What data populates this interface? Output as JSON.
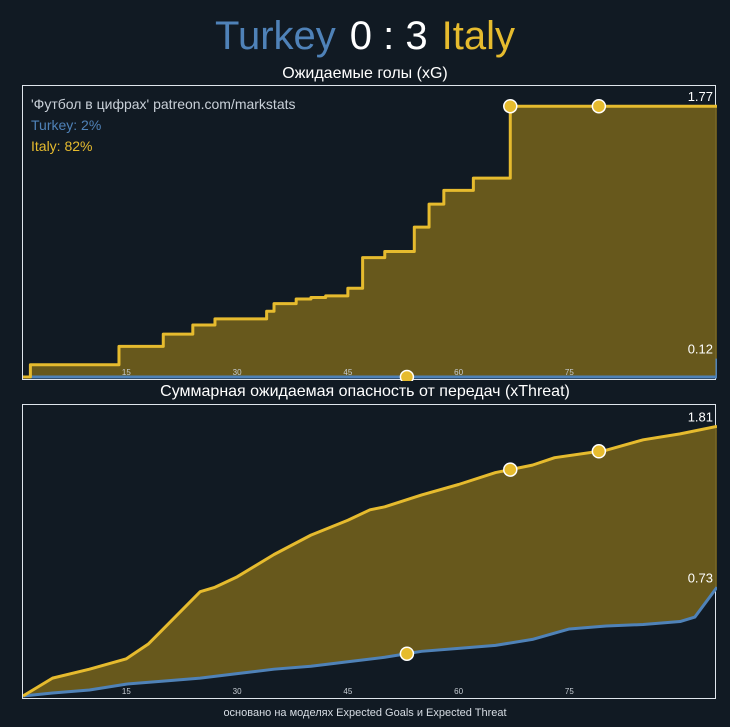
{
  "match": {
    "home_team": "Turkey",
    "away_team": "Italy",
    "score": "0 : 3",
    "home_color": "#4f82b8",
    "away_color": "#e6bb2e"
  },
  "legend": {
    "credit": "'Футбол в цифрах' patreon.com/markstats",
    "home_prob": "Turkey: 2%",
    "away_prob": "Italy: 82%"
  },
  "footer": "основано на моделях Expected Goals и Expected Threat",
  "chart_data": [
    {
      "type": "line",
      "title": "Ожидаемые голы (xG)",
      "xlim": [
        1,
        95
      ],
      "ylim": [
        0,
        1.85
      ],
      "x_ticks": [
        15,
        30,
        45,
        60,
        75
      ],
      "end_labels": {
        "Turkey": "0.12",
        "Italy": "1.77"
      },
      "fill_between": true,
      "step": true,
      "series": [
        {
          "name": "Turkey",
          "color": "#4f82b8",
          "x": [
            1,
            88,
            95
          ],
          "y": [
            0,
            0,
            0.12
          ]
        },
        {
          "name": "Italy",
          "color": "#e6bb2e",
          "x": [
            1,
            2,
            14,
            18,
            20,
            24,
            27,
            31,
            34,
            35,
            38,
            40,
            42,
            45,
            47,
            50,
            54,
            56,
            58,
            62,
            63,
            67,
            80,
            95
          ],
          "y": [
            0,
            0.08,
            0.2,
            0.2,
            0.28,
            0.34,
            0.38,
            0.38,
            0.43,
            0.48,
            0.51,
            0.52,
            0.53,
            0.58,
            0.78,
            0.82,
            0.98,
            1.13,
            1.22,
            1.3,
            1.3,
            1.77,
            1.77,
            1.77
          ]
        }
      ],
      "goals": [
        {
          "team": "Turkey",
          "x": 53
        },
        {
          "team": "Italy",
          "x": 67
        },
        {
          "team": "Italy",
          "x": 79
        }
      ]
    },
    {
      "type": "line",
      "title": "Суммарная ожидаемая опасность от передач (xThreat)",
      "xlim": [
        1,
        95
      ],
      "ylim": [
        0,
        1.9
      ],
      "x_ticks": [
        15,
        30,
        45,
        60,
        75
      ],
      "end_labels": {
        "Turkey": "0.73",
        "Italy": "1.81"
      },
      "fill_between": true,
      "step": false,
      "series": [
        {
          "name": "Turkey",
          "color": "#4f82b8",
          "x": [
            1,
            5,
            10,
            15,
            20,
            25,
            30,
            35,
            40,
            45,
            50,
            55,
            60,
            65,
            70,
            75,
            80,
            85,
            90,
            92,
            95
          ],
          "y": [
            0,
            0.02,
            0.04,
            0.08,
            0.1,
            0.12,
            0.15,
            0.18,
            0.2,
            0.23,
            0.26,
            0.3,
            0.32,
            0.34,
            0.38,
            0.45,
            0.47,
            0.48,
            0.5,
            0.53,
            0.73
          ]
        },
        {
          "name": "Italy",
          "color": "#e6bb2e",
          "x": [
            1,
            5,
            10,
            15,
            18,
            22,
            25,
            27,
            30,
            35,
            40,
            45,
            48,
            50,
            55,
            60,
            65,
            70,
            73,
            80,
            85,
            90,
            95
          ],
          "y": [
            0,
            0.12,
            0.18,
            0.25,
            0.35,
            0.55,
            0.7,
            0.73,
            0.8,
            0.95,
            1.08,
            1.18,
            1.25,
            1.27,
            1.35,
            1.42,
            1.5,
            1.55,
            1.6,
            1.65,
            1.72,
            1.76,
            1.81
          ]
        }
      ],
      "goals": [
        {
          "team": "Turkey",
          "x": 53
        },
        {
          "team": "Italy",
          "x": 67
        },
        {
          "team": "Italy",
          "x": 79
        }
      ]
    }
  ]
}
